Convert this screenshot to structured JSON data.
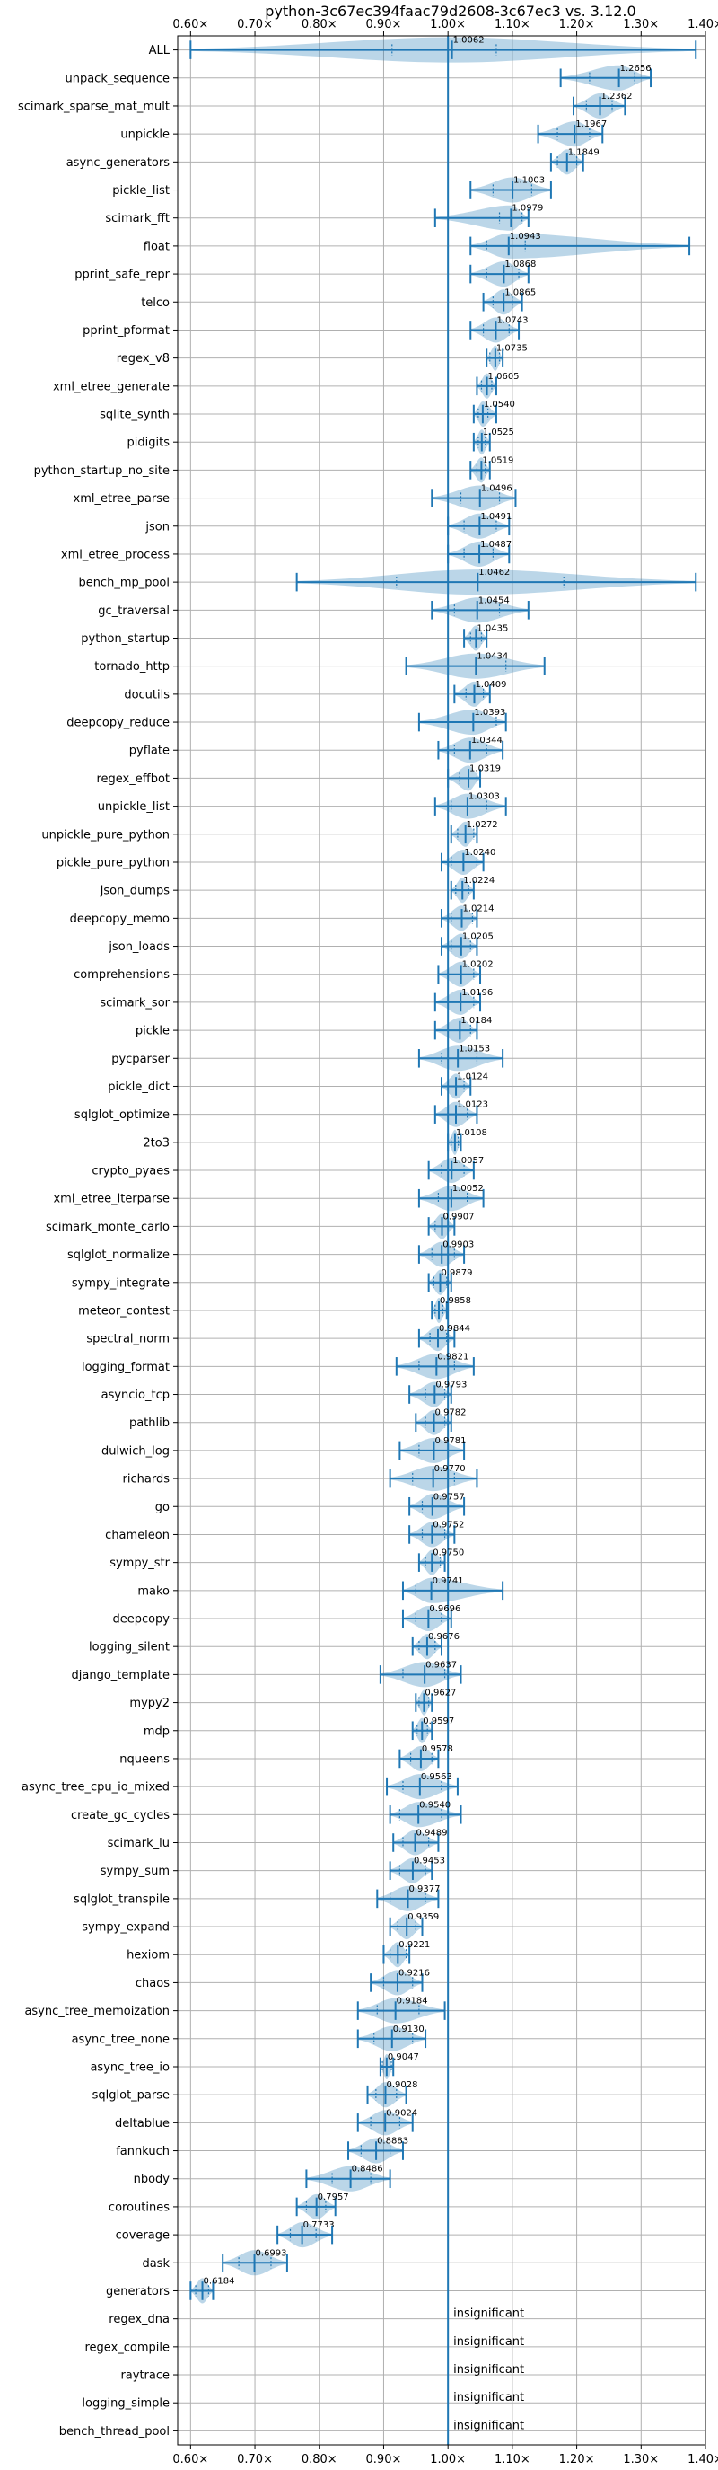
{
  "chart_data": {
    "type": "violin",
    "title": "python-3c67ec394faac79d2608-3c67ec3 vs. 3.12.0",
    "xlabel": "",
    "ylabel": "",
    "xlim": [
      0.58,
      1.4
    ],
    "xticks": [
      0.6,
      0.7,
      0.8,
      0.9,
      1.0,
      1.1,
      1.2,
      1.3,
      1.4
    ],
    "xtick_labels": [
      "0.60×",
      "0.70×",
      "0.80×",
      "0.90×",
      "1.00×",
      "1.10×",
      "1.20×",
      "1.30×",
      "1.40×"
    ],
    "reference_line": 1.0,
    "insignificant_label": "insignificant",
    "grid": true,
    "benchmarks": [
      {
        "name": "ALL",
        "value": 1.0062,
        "label": "1.0062",
        "min": 0.6,
        "max": 1.385,
        "q1": 0.913,
        "q3": 1.075
      },
      {
        "name": "unpack_sequence",
        "value": 1.2656,
        "label": "1.2656",
        "min": 1.175,
        "max": 1.315,
        "q1": 1.22,
        "q3": 1.29
      },
      {
        "name": "scimark_sparse_mat_mult",
        "value": 1.2362,
        "label": "1.2362",
        "min": 1.195,
        "max": 1.275,
        "q1": 1.215,
        "q3": 1.255
      },
      {
        "name": "unpickle",
        "value": 1.1967,
        "label": "1.1967",
        "min": 1.14,
        "max": 1.24,
        "q1": 1.17,
        "q3": 1.22
      },
      {
        "name": "async_generators",
        "value": 1.1849,
        "label": "1.1849",
        "min": 1.16,
        "max": 1.21,
        "q1": 1.17,
        "q3": 1.2
      },
      {
        "name": "pickle_list",
        "value": 1.1003,
        "label": "1.1003",
        "min": 1.035,
        "max": 1.16,
        "q1": 1.07,
        "q3": 1.13
      },
      {
        "name": "scimark_fft",
        "value": 1.0979,
        "label": "1.0979",
        "min": 0.98,
        "max": 1.125,
        "q1": 1.08,
        "q3": 1.115
      },
      {
        "name": "float",
        "value": 1.0943,
        "label": "1.0943",
        "min": 1.035,
        "max": 1.375,
        "q1": 1.06,
        "q3": 1.12
      },
      {
        "name": "pprint_safe_repr",
        "value": 1.0868,
        "label": "1.0868",
        "min": 1.035,
        "max": 1.125,
        "q1": 1.06,
        "q3": 1.11
      },
      {
        "name": "telco",
        "value": 1.0865,
        "label": "1.0865",
        "min": 1.055,
        "max": 1.115,
        "q1": 1.07,
        "q3": 1.1
      },
      {
        "name": "pprint_pformat",
        "value": 1.0743,
        "label": "1.0743",
        "min": 1.035,
        "max": 1.11,
        "q1": 1.055,
        "q3": 1.095
      },
      {
        "name": "regex_v8",
        "value": 1.0735,
        "label": "1.0735",
        "min": 1.06,
        "max": 1.085,
        "q1": 1.065,
        "q3": 1.08
      },
      {
        "name": "xml_etree_generate",
        "value": 1.0605,
        "label": "1.0605",
        "min": 1.045,
        "max": 1.075,
        "q1": 1.052,
        "q3": 1.068
      },
      {
        "name": "sqlite_synth",
        "value": 1.054,
        "label": "1.0540",
        "min": 1.04,
        "max": 1.075,
        "q1": 1.047,
        "q3": 1.062
      },
      {
        "name": "pidigits",
        "value": 1.0525,
        "label": "1.0525",
        "min": 1.04,
        "max": 1.065,
        "q1": 1.047,
        "q3": 1.058
      },
      {
        "name": "python_startup_no_site",
        "value": 1.0519,
        "label": "1.0519",
        "min": 1.035,
        "max": 1.065,
        "q1": 1.045,
        "q3": 1.058
      },
      {
        "name": "xml_etree_parse",
        "value": 1.0496,
        "label": "1.0496",
        "min": 0.975,
        "max": 1.105,
        "q1": 1.02,
        "q3": 1.08
      },
      {
        "name": "json",
        "value": 1.0491,
        "label": "1.0491",
        "min": 1.0,
        "max": 1.095,
        "q1": 1.025,
        "q3": 1.075
      },
      {
        "name": "xml_etree_process",
        "value": 1.0487,
        "label": "1.0487",
        "min": 1.0,
        "max": 1.095,
        "q1": 1.025,
        "q3": 1.07
      },
      {
        "name": "bench_mp_pool",
        "value": 1.0462,
        "label": "1.0462",
        "min": 0.765,
        "max": 1.385,
        "q1": 0.92,
        "q3": 1.18
      },
      {
        "name": "gc_traversal",
        "value": 1.0454,
        "label": "1.0454",
        "min": 0.975,
        "max": 1.125,
        "q1": 1.01,
        "q3": 1.08
      },
      {
        "name": "python_startup",
        "value": 1.0435,
        "label": "1.0435",
        "min": 1.025,
        "max": 1.06,
        "q1": 1.035,
        "q3": 1.052
      },
      {
        "name": "tornado_http",
        "value": 1.0434,
        "label": "1.0434",
        "min": 0.935,
        "max": 1.15,
        "q1": 1.0,
        "q3": 1.09
      },
      {
        "name": "docutils",
        "value": 1.0409,
        "label": "1.0409",
        "min": 1.01,
        "max": 1.065,
        "q1": 1.028,
        "q3": 1.055
      },
      {
        "name": "deepcopy_reduce",
        "value": 1.0393,
        "label": "1.0393",
        "min": 0.955,
        "max": 1.09,
        "q1": 1.0,
        "q3": 1.075
      },
      {
        "name": "pyflate",
        "value": 1.0344,
        "label": "1.0344",
        "min": 0.985,
        "max": 1.085,
        "q1": 1.01,
        "q3": 1.06
      },
      {
        "name": "regex_effbot",
        "value": 1.0319,
        "label": "1.0319",
        "min": 1.0,
        "max": 1.05,
        "q1": 1.018,
        "q3": 1.045
      },
      {
        "name": "unpickle_list",
        "value": 1.0303,
        "label": "1.0303",
        "min": 0.98,
        "max": 1.09,
        "q1": 1.005,
        "q3": 1.06
      },
      {
        "name": "unpickle_pure_python",
        "value": 1.0272,
        "label": "1.0272",
        "min": 1.005,
        "max": 1.045,
        "q1": 1.015,
        "q3": 1.04
      },
      {
        "name": "pickle_pure_python",
        "value": 1.024,
        "label": "1.0240",
        "min": 0.99,
        "max": 1.055,
        "q1": 1.005,
        "q3": 1.045
      },
      {
        "name": "json_dumps",
        "value": 1.0224,
        "label": "1.0224",
        "min": 1.005,
        "max": 1.04,
        "q1": 1.012,
        "q3": 1.032
      },
      {
        "name": "deepcopy_memo",
        "value": 1.0214,
        "label": "1.0214",
        "min": 0.99,
        "max": 1.045,
        "q1": 1.005,
        "q3": 1.038
      },
      {
        "name": "json_loads",
        "value": 1.0205,
        "label": "1.0205",
        "min": 0.99,
        "max": 1.045,
        "q1": 1.005,
        "q3": 1.035
      },
      {
        "name": "comprehensions",
        "value": 1.0202,
        "label": "1.0202",
        "min": 0.985,
        "max": 1.05,
        "q1": 1.0,
        "q3": 1.04
      },
      {
        "name": "scimark_sor",
        "value": 1.0196,
        "label": "1.0196",
        "min": 0.98,
        "max": 1.05,
        "q1": 1.0,
        "q3": 1.04
      },
      {
        "name": "pickle",
        "value": 1.0184,
        "label": "1.0184",
        "min": 0.98,
        "max": 1.045,
        "q1": 1.0,
        "q3": 1.035
      },
      {
        "name": "pycparser",
        "value": 1.0153,
        "label": "1.0153",
        "min": 0.955,
        "max": 1.085,
        "q1": 0.99,
        "q3": 1.045
      },
      {
        "name": "pickle_dict",
        "value": 1.0124,
        "label": "1.0124",
        "min": 0.99,
        "max": 1.035,
        "q1": 1.0,
        "q3": 1.025
      },
      {
        "name": "sqlglot_optimize",
        "value": 1.0123,
        "label": "1.0123",
        "min": 0.98,
        "max": 1.045,
        "q1": 1.0,
        "q3": 1.03
      },
      {
        "name": "2to3",
        "value": 1.0108,
        "label": "1.0108",
        "min": 1.0,
        "max": 1.02,
        "q1": 1.005,
        "q3": 1.016
      },
      {
        "name": "crypto_pyaes",
        "value": 1.0057,
        "label": "1.0057",
        "min": 0.97,
        "max": 1.04,
        "q1": 0.99,
        "q3": 1.025
      },
      {
        "name": "xml_etree_iterparse",
        "value": 1.0052,
        "label": "1.0052",
        "min": 0.955,
        "max": 1.055,
        "q1": 0.985,
        "q3": 1.03
      },
      {
        "name": "scimark_monte_carlo",
        "value": 0.9907,
        "label": "0.9907",
        "min": 0.97,
        "max": 1.01,
        "q1": 0.98,
        "q3": 1.0
      },
      {
        "name": "sqlglot_normalize",
        "value": 0.9903,
        "label": "0.9903",
        "min": 0.955,
        "max": 1.025,
        "q1": 0.975,
        "q3": 1.01
      },
      {
        "name": "sympy_integrate",
        "value": 0.9879,
        "label": "0.9879",
        "min": 0.97,
        "max": 1.005,
        "q1": 0.978,
        "q3": 0.998
      },
      {
        "name": "meteor_contest",
        "value": 0.9858,
        "label": "0.9858",
        "min": 0.975,
        "max": 0.998,
        "q1": 0.98,
        "q3": 0.992
      },
      {
        "name": "spectral_norm",
        "value": 0.9844,
        "label": "0.9844",
        "min": 0.955,
        "max": 1.01,
        "q1": 0.972,
        "q3": 0.998
      },
      {
        "name": "logging_format",
        "value": 0.9821,
        "label": "0.9821",
        "min": 0.92,
        "max": 1.04,
        "q1": 0.955,
        "q3": 1.01
      },
      {
        "name": "asyncio_tcp",
        "value": 0.9793,
        "label": "0.9793",
        "min": 0.94,
        "max": 1.005,
        "q1": 0.965,
        "q3": 0.995
      },
      {
        "name": "pathlib",
        "value": 0.9782,
        "label": "0.9782",
        "min": 0.95,
        "max": 1.005,
        "q1": 0.965,
        "q3": 0.995
      },
      {
        "name": "dulwich_log",
        "value": 0.9781,
        "label": "0.9781",
        "min": 0.925,
        "max": 1.025,
        "q1": 0.955,
        "q3": 1.0
      },
      {
        "name": "richards",
        "value": 0.977,
        "label": "0.9770",
        "min": 0.91,
        "max": 1.045,
        "q1": 0.945,
        "q3": 1.01
      },
      {
        "name": "go",
        "value": 0.9757,
        "label": "0.9757",
        "min": 0.94,
        "max": 1.025,
        "q1": 0.96,
        "q3": 1.0
      },
      {
        "name": "chameleon",
        "value": 0.9752,
        "label": "0.9752",
        "min": 0.94,
        "max": 1.01,
        "q1": 0.96,
        "q3": 0.995
      },
      {
        "name": "sympy_str",
        "value": 0.975,
        "label": "0.9750",
        "min": 0.955,
        "max": 0.995,
        "q1": 0.965,
        "q3": 0.988
      },
      {
        "name": "mako",
        "value": 0.9741,
        "label": "0.9741",
        "min": 0.93,
        "max": 1.085,
        "q1": 0.95,
        "q3": 1.0
      },
      {
        "name": "deepcopy",
        "value": 0.9696,
        "label": "0.9696",
        "min": 0.93,
        "max": 1.005,
        "q1": 0.95,
        "q3": 0.99
      },
      {
        "name": "logging_silent",
        "value": 0.9676,
        "label": "0.9676",
        "min": 0.945,
        "max": 0.99,
        "q1": 0.955,
        "q3": 0.98
      },
      {
        "name": "django_template",
        "value": 0.9637,
        "label": "0.9637",
        "min": 0.895,
        "max": 1.02,
        "q1": 0.93,
        "q3": 0.995
      },
      {
        "name": "mypy2",
        "value": 0.9627,
        "label": "0.9627",
        "min": 0.95,
        "max": 0.975,
        "q1": 0.955,
        "q3": 0.97
      },
      {
        "name": "mdp",
        "value": 0.9597,
        "label": "0.9597",
        "min": 0.945,
        "max": 0.975,
        "q1": 0.952,
        "q3": 0.968
      },
      {
        "name": "nqueens",
        "value": 0.9578,
        "label": "0.9578",
        "min": 0.925,
        "max": 0.985,
        "q1": 0.942,
        "q3": 0.975
      },
      {
        "name": "async_tree_cpu_io_mixed",
        "value": 0.9563,
        "label": "0.9563",
        "min": 0.905,
        "max": 1.015,
        "q1": 0.93,
        "q3": 0.99
      },
      {
        "name": "create_gc_cycles",
        "value": 0.954,
        "label": "0.9540",
        "min": 0.91,
        "max": 1.02,
        "q1": 0.925,
        "q3": 0.99
      },
      {
        "name": "scimark_lu",
        "value": 0.9489,
        "label": "0.9489",
        "min": 0.915,
        "max": 0.985,
        "q1": 0.93,
        "q3": 0.97
      },
      {
        "name": "sympy_sum",
        "value": 0.9453,
        "label": "0.9453",
        "min": 0.91,
        "max": 0.975,
        "q1": 0.925,
        "q3": 0.965
      },
      {
        "name": "sqlglot_transpile",
        "value": 0.9377,
        "label": "0.9377",
        "min": 0.89,
        "max": 0.985,
        "q1": 0.91,
        "q3": 0.965
      },
      {
        "name": "sympy_expand",
        "value": 0.9359,
        "label": "0.9359",
        "min": 0.91,
        "max": 0.96,
        "q1": 0.922,
        "q3": 0.95
      },
      {
        "name": "hexiom",
        "value": 0.9221,
        "label": "0.9221",
        "min": 0.9,
        "max": 0.94,
        "q1": 0.91,
        "q3": 0.935
      },
      {
        "name": "chaos",
        "value": 0.9216,
        "label": "0.9216",
        "min": 0.88,
        "max": 0.96,
        "q1": 0.9,
        "q3": 0.945
      },
      {
        "name": "async_tree_memoization",
        "value": 0.9184,
        "label": "0.9184",
        "min": 0.86,
        "max": 0.995,
        "q1": 0.89,
        "q3": 0.955
      },
      {
        "name": "async_tree_none",
        "value": 0.913,
        "label": "0.9130",
        "min": 0.86,
        "max": 0.965,
        "q1": 0.885,
        "q3": 0.945
      },
      {
        "name": "async_tree_io",
        "value": 0.9047,
        "label": "0.9047",
        "min": 0.895,
        "max": 0.915,
        "q1": 0.898,
        "q3": 0.912
      },
      {
        "name": "sqlglot_parse",
        "value": 0.9028,
        "label": "0.9028",
        "min": 0.875,
        "max": 0.935,
        "q1": 0.888,
        "q3": 0.92
      },
      {
        "name": "deltablue",
        "value": 0.9024,
        "label": "0.9024",
        "min": 0.86,
        "max": 0.945,
        "q1": 0.88,
        "q3": 0.925
      },
      {
        "name": "fannkuch",
        "value": 0.8883,
        "label": "0.8883",
        "min": 0.845,
        "max": 0.93,
        "q1": 0.865,
        "q3": 0.91
      },
      {
        "name": "nbody",
        "value": 0.8486,
        "label": "0.8486",
        "min": 0.78,
        "max": 0.91,
        "q1": 0.82,
        "q3": 0.88
      },
      {
        "name": "coroutines",
        "value": 0.7957,
        "label": "0.7957",
        "min": 0.765,
        "max": 0.825,
        "q1": 0.78,
        "q3": 0.81
      },
      {
        "name": "coverage",
        "value": 0.7733,
        "label": "0.7733",
        "min": 0.735,
        "max": 0.82,
        "q1": 0.755,
        "q3": 0.795
      },
      {
        "name": "dask",
        "value": 0.6993,
        "label": "0.6993",
        "min": 0.65,
        "max": 0.75,
        "q1": 0.675,
        "q3": 0.725
      },
      {
        "name": "generators",
        "value": 0.6184,
        "label": "0.6184",
        "min": 0.6,
        "max": 0.635,
        "q1": 0.608,
        "q3": 0.628
      },
      {
        "name": "regex_dna",
        "insignificant": true
      },
      {
        "name": "regex_compile",
        "insignificant": true
      },
      {
        "name": "raytrace",
        "insignificant": true
      },
      {
        "name": "logging_simple",
        "insignificant": true
      },
      {
        "name": "bench_thread_pool",
        "insignificant": true
      }
    ]
  }
}
